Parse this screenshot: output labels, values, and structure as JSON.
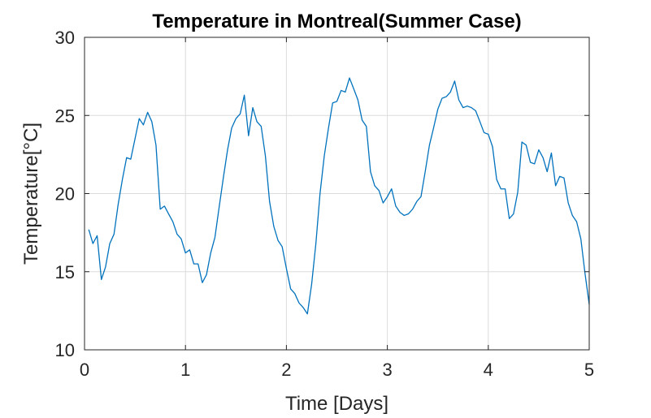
{
  "chart_data": {
    "type": "line",
    "title": "Temperature in Montreal(Summer Case)",
    "xlabel": "Time [Days]",
    "ylabel": "Temperature[°C]",
    "xlim": [
      0,
      5
    ],
    "ylim": [
      10,
      30
    ],
    "xticks": [
      0,
      1,
      2,
      3,
      4,
      5
    ],
    "yticks": [
      10,
      15,
      20,
      25,
      30
    ],
    "grid": true,
    "line_color": "#0072BD",
    "series": [
      {
        "x": [
          0.042,
          0.083,
          0.125,
          0.167,
          0.208,
          0.25,
          0.292,
          0.333,
          0.375,
          0.417,
          0.458,
          0.5,
          0.542,
          0.583,
          0.625,
          0.667,
          0.708,
          0.75,
          0.792,
          0.833,
          0.875,
          0.917,
          0.958,
          1.0,
          1.042,
          1.083,
          1.125,
          1.167,
          1.208,
          1.25,
          1.292,
          1.333,
          1.375,
          1.417,
          1.458,
          1.5,
          1.542,
          1.583,
          1.625,
          1.667,
          1.708,
          1.75,
          1.792,
          1.833,
          1.875,
          1.917,
          1.958,
          2.0,
          2.042,
          2.083,
          2.125,
          2.167,
          2.208,
          2.25,
          2.292,
          2.333,
          2.375,
          2.417,
          2.458,
          2.5,
          2.542,
          2.583,
          2.625,
          2.667,
          2.708,
          2.75,
          2.792,
          2.833,
          2.875,
          2.917,
          2.958,
          3.0,
          3.042,
          3.083,
          3.125,
          3.167,
          3.208,
          3.25,
          3.292,
          3.333,
          3.375,
          3.417,
          3.458,
          3.5,
          3.542,
          3.583,
          3.625,
          3.667,
          3.708,
          3.75,
          3.792,
          3.833,
          3.875,
          3.917,
          3.958,
          4.0,
          4.042,
          4.083,
          4.125,
          4.167,
          4.208,
          4.25,
          4.292,
          4.333,
          4.375,
          4.417,
          4.458,
          4.5,
          4.542,
          4.583,
          4.625,
          4.667,
          4.708,
          4.75,
          4.792,
          4.833,
          4.875,
          4.917,
          4.958,
          5.0
        ],
        "values": [
          17.7,
          16.8,
          17.3,
          14.5,
          15.3,
          16.8,
          17.4,
          19.3,
          20.9,
          22.3,
          22.2,
          23.5,
          24.8,
          24.4,
          25.2,
          24.6,
          23.1,
          19.0,
          19.2,
          18.7,
          18.2,
          17.4,
          17.1,
          16.2,
          16.4,
          15.5,
          15.5,
          14.3,
          14.8,
          16.2,
          17.2,
          19.1,
          21.0,
          22.8,
          24.2,
          24.8,
          25.1,
          26.3,
          23.7,
          25.5,
          24.6,
          24.3,
          22.4,
          19.5,
          17.9,
          17.0,
          16.6,
          15.2,
          13.9,
          13.6,
          13.0,
          12.7,
          12.3,
          14.2,
          16.8,
          20.0,
          22.4,
          24.2,
          25.8,
          25.9,
          26.6,
          26.5,
          27.4,
          26.7,
          26.0,
          24.7,
          24.3,
          21.4,
          20.5,
          20.2,
          19.4,
          19.8,
          20.3,
          19.2,
          18.8,
          18.6,
          18.7,
          19.0,
          19.5,
          19.8,
          21.4,
          23.1,
          24.2,
          25.4,
          26.1,
          26.2,
          26.5,
          27.2,
          26.0,
          25.5,
          25.6,
          25.5,
          25.3,
          24.6,
          23.9,
          23.8,
          23.0,
          20.9,
          20.3,
          20.3,
          18.4,
          18.7,
          20.1,
          23.3,
          23.1,
          22.0,
          21.9,
          22.8,
          22.3,
          21.4,
          22.6,
          20.5,
          21.1,
          21.0,
          19.4,
          18.6,
          18.2,
          17.1,
          14.9,
          12.9
        ]
      }
    ]
  }
}
